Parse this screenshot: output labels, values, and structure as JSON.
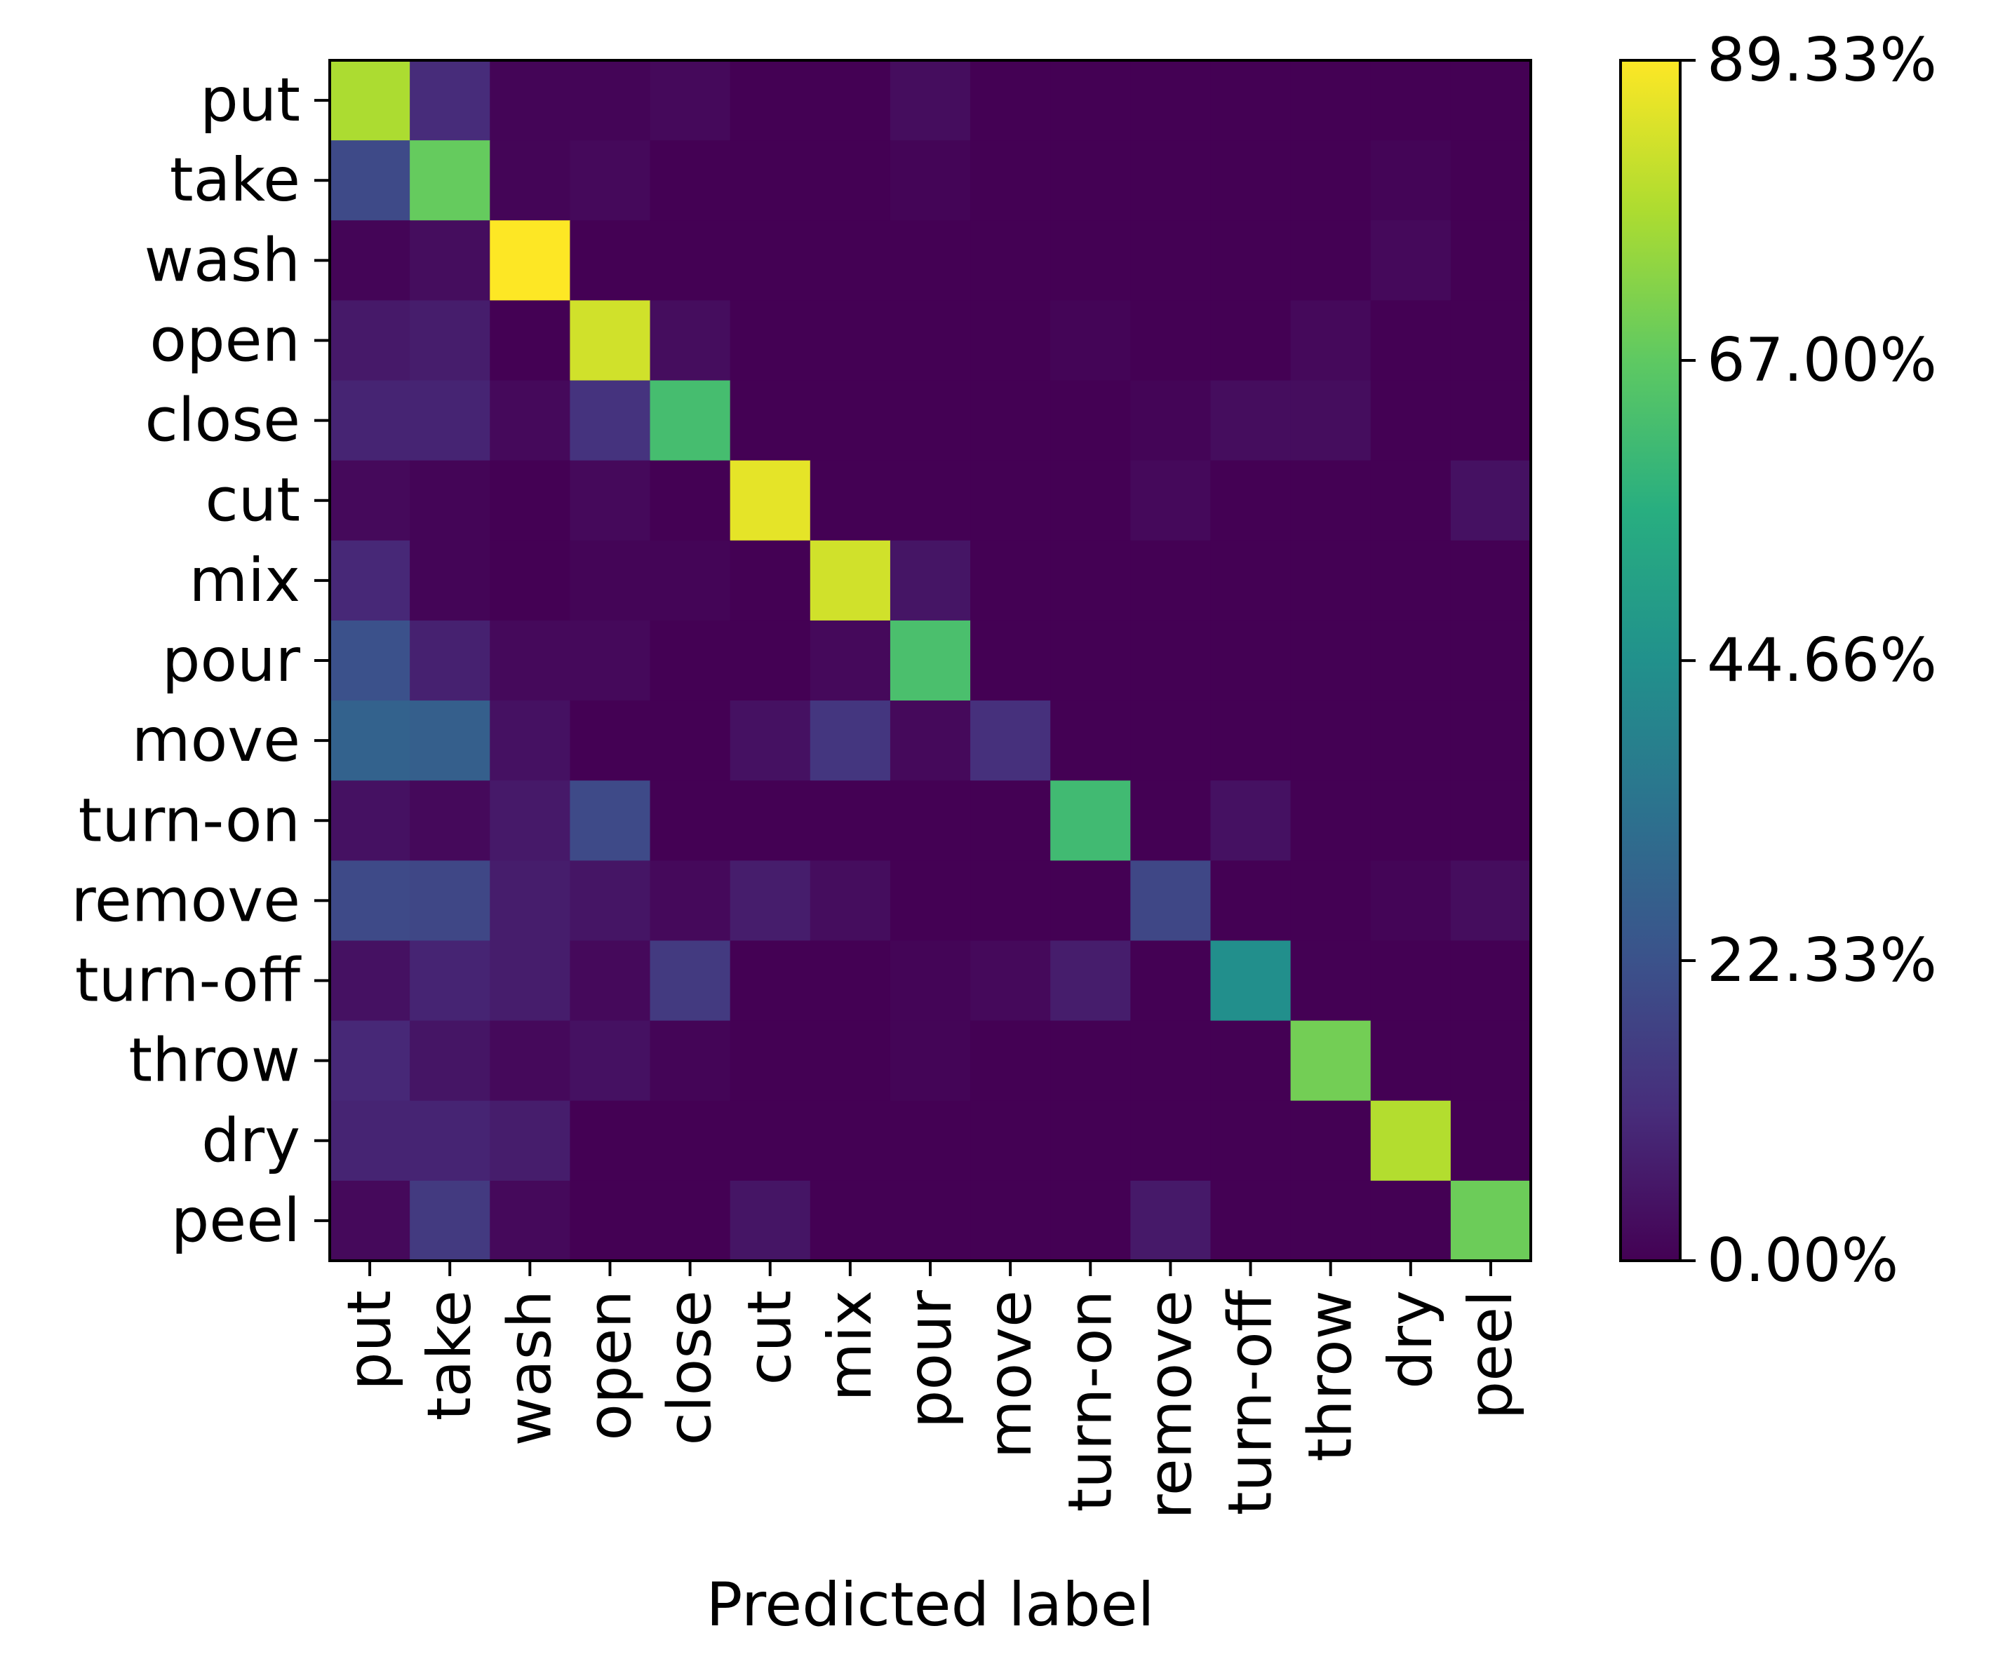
{
  "chart_data": {
    "type": "heatmap",
    "title": "",
    "xlabel": "Predicted label",
    "ylabel": "",
    "rows": [
      "put",
      "take",
      "wash",
      "open",
      "close",
      "cut",
      "mix",
      "pour",
      "move",
      "turn-on",
      "remove",
      "turn-off",
      "throw",
      "dry",
      "peel"
    ],
    "columns": [
      "put",
      "take",
      "wash",
      "open",
      "close",
      "cut",
      "mix",
      "pour",
      "move",
      "turn-on",
      "remove",
      "turn-off",
      "throw",
      "dry",
      "peel"
    ],
    "values": [
      [
        78,
        11,
        1,
        1,
        2,
        0,
        0,
        3,
        0,
        0,
        0,
        0,
        0,
        0,
        0
      ],
      [
        20,
        68,
        1,
        2,
        0,
        0,
        0,
        1,
        0,
        0,
        0,
        0,
        0,
        1,
        0
      ],
      [
        1,
        3,
        89.33,
        0,
        0,
        0,
        0,
        0,
        0,
        0,
        0,
        0,
        0,
        2,
        0
      ],
      [
        6,
        7,
        0,
        83,
        3,
        0,
        0,
        0,
        0,
        1,
        0,
        0,
        2,
        0,
        0
      ],
      [
        9,
        9,
        2,
        13,
        62,
        0,
        0,
        0,
        0,
        0,
        1,
        3,
        3,
        0,
        0
      ],
      [
        2,
        1,
        0,
        2,
        0,
        86,
        0,
        0,
        0,
        0,
        2,
        0,
        0,
        0,
        4
      ],
      [
        10,
        1,
        0,
        1,
        1,
        0,
        83,
        5,
        0,
        0,
        0,
        0,
        0,
        0,
        0
      ],
      [
        22,
        8,
        2,
        2,
        0,
        0,
        2,
        63,
        0,
        0,
        0,
        0,
        0,
        0,
        0
      ],
      [
        28,
        27,
        4,
        0,
        0,
        4,
        14,
        2,
        12,
        0,
        0,
        0,
        0,
        0,
        0
      ],
      [
        4,
        2,
        6,
        20,
        0,
        0,
        0,
        0,
        0,
        61,
        0,
        4,
        0,
        0,
        0
      ],
      [
        20,
        19,
        7,
        5,
        2,
        7,
        3,
        0,
        0,
        0,
        19,
        0,
        0,
        1,
        3
      ],
      [
        4,
        9,
        7,
        2,
        15,
        0,
        0,
        1,
        2,
        7,
        0,
        44,
        0,
        0,
        0
      ],
      [
        10,
        5,
        2,
        4,
        1,
        0,
        0,
        1,
        0,
        0,
        0,
        0,
        70,
        0,
        0
      ],
      [
        9,
        9,
        7,
        0,
        0,
        0,
        0,
        0,
        0,
        0,
        0,
        0,
        0,
        79,
        0
      ],
      [
        2,
        15,
        2,
        0,
        0,
        5,
        0,
        0,
        0,
        0,
        6,
        0,
        0,
        0,
        69
      ]
    ],
    "value_range": [
      0,
      89.33
    ],
    "colormap": "viridis",
    "colorbar": {
      "placement": "right",
      "ticks": [
        0,
        22.33,
        44.66,
        67.0,
        89.33
      ],
      "tick_labels": [
        "0.00%",
        "22.33%",
        "44.66%",
        "67.00%",
        "89.33%"
      ]
    },
    "grid": false
  }
}
